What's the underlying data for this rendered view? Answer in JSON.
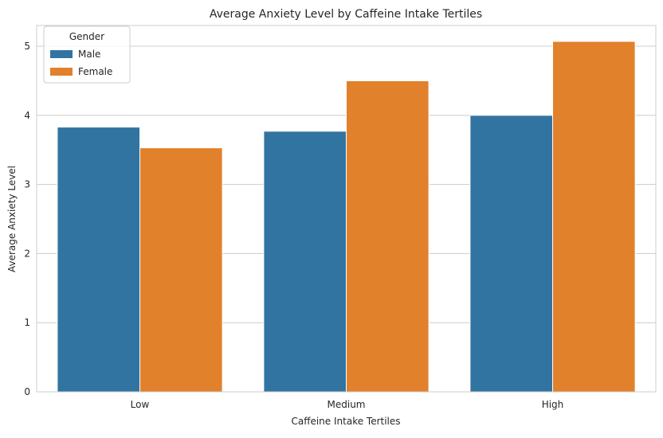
{
  "chart_data": {
    "type": "bar",
    "title": "Average Anxiety Level by Caffeine Intake Tertiles",
    "xlabel": "Caffeine Intake Tertiles",
    "ylabel": "Average Anxiety Level",
    "categories": [
      "Low",
      "Medium",
      "High"
    ],
    "ylim": [
      0,
      5.3
    ],
    "yticks": [
      0,
      1,
      2,
      3,
      4,
      5
    ],
    "grid": "horizontal",
    "legend": {
      "title": "Gender",
      "placement": "top-left"
    },
    "series": [
      {
        "name": "Male",
        "color": "#3274a1",
        "values": [
          3.83,
          3.77,
          4.0
        ]
      },
      {
        "name": "Female",
        "color": "#e1812c",
        "values": [
          3.53,
          4.5,
          5.07
        ]
      }
    ]
  }
}
